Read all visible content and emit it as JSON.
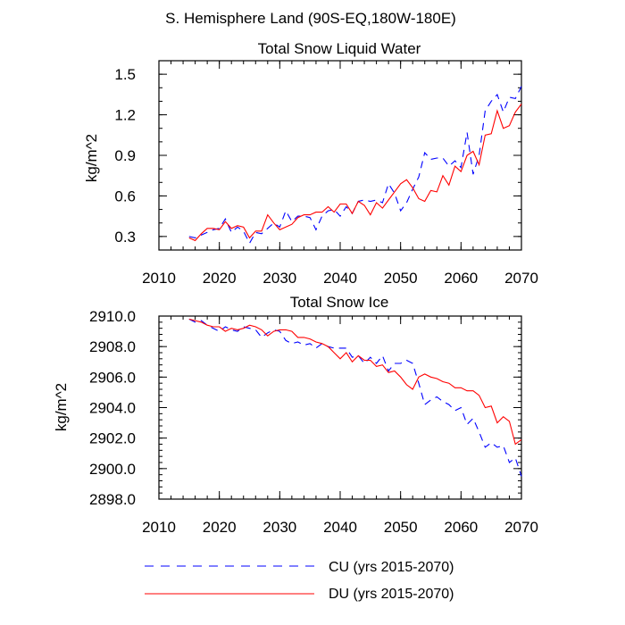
{
  "figure_title": "S. Hemisphere Land (90S-EQ,180W-180E)",
  "legend": [
    {
      "label": "CU (yrs 2015-2070)",
      "color": "#0000ff",
      "dash": "dashed"
    },
    {
      "label": "DU (yrs 2015-2070)",
      "color": "#ff0000",
      "dash": "solid"
    }
  ],
  "chart_data": [
    {
      "type": "line",
      "title": "Total Snow Liquid Water",
      "xlabel": "",
      "ylabel": "kg/m^2",
      "xlim": [
        2010,
        2070
      ],
      "ylim": [
        0.2,
        1.6
      ],
      "x_ticks": [
        2010,
        2020,
        2030,
        2040,
        2050,
        2060,
        2070
      ],
      "x_tick_labels": [
        "2010",
        "2020",
        "2030",
        "2040",
        "2050",
        "2060",
        "2070"
      ],
      "y_ticks": [
        0.3,
        0.6,
        0.9,
        1.2,
        1.5
      ],
      "y_tick_labels": [
        "0.3",
        "0.6",
        "0.9",
        "1.2",
        "1.5"
      ],
      "x": [
        2015,
        2016,
        2017,
        2018,
        2019,
        2020,
        2021,
        2022,
        2023,
        2024,
        2025,
        2026,
        2027,
        2028,
        2029,
        2030,
        2031,
        2032,
        2033,
        2034,
        2035,
        2036,
        2037,
        2038,
        2039,
        2040,
        2041,
        2042,
        2043,
        2044,
        2045,
        2046,
        2047,
        2048,
        2049,
        2050,
        2051,
        2052,
        2053,
        2054,
        2055,
        2056,
        2057,
        2058,
        2059,
        2060,
        2061,
        2062,
        2063,
        2064,
        2065,
        2066,
        2067,
        2068,
        2069,
        2070
      ],
      "series": [
        {
          "name": "CU (yrs 2015-2070)",
          "color": "#0000ff",
          "dash": "dashed",
          "values": [
            0.3,
            0.29,
            0.31,
            0.33,
            0.35,
            0.36,
            0.43,
            0.33,
            0.37,
            0.34,
            0.25,
            0.33,
            0.32,
            0.36,
            0.4,
            0.37,
            0.49,
            0.41,
            0.45,
            0.45,
            0.44,
            0.35,
            0.45,
            0.49,
            0.5,
            0.45,
            0.52,
            0.47,
            0.56,
            0.57,
            0.56,
            0.57,
            0.55,
            0.69,
            0.62,
            0.49,
            0.55,
            0.65,
            0.74,
            0.92,
            0.87,
            0.88,
            0.88,
            0.82,
            0.86,
            0.81,
            1.07,
            0.76,
            0.9,
            1.23,
            1.3,
            1.35,
            1.22,
            1.33,
            1.32,
            1.41
          ]
        },
        {
          "name": "DU (yrs 2015-2070)",
          "color": "#ff0000",
          "dash": "solid",
          "values": [
            0.29,
            0.27,
            0.32,
            0.36,
            0.36,
            0.35,
            0.41,
            0.36,
            0.38,
            0.37,
            0.29,
            0.34,
            0.34,
            0.46,
            0.4,
            0.35,
            0.37,
            0.39,
            0.44,
            0.46,
            0.46,
            0.48,
            0.48,
            0.52,
            0.48,
            0.54,
            0.54,
            0.47,
            0.56,
            0.53,
            0.46,
            0.55,
            0.51,
            0.57,
            0.63,
            0.69,
            0.72,
            0.66,
            0.58,
            0.56,
            0.64,
            0.63,
            0.75,
            0.68,
            0.82,
            0.78,
            0.9,
            0.93,
            0.83,
            1.05,
            1.06,
            1.23,
            1.1,
            1.12,
            1.22,
            1.28
          ]
        }
      ]
    },
    {
      "type": "line",
      "title": "Total Snow Ice",
      "xlabel": "",
      "ylabel": "kg/m^2",
      "xlim": [
        2010,
        2070
      ],
      "ylim": [
        2898.0,
        2910.0
      ],
      "x_ticks": [
        2010,
        2020,
        2030,
        2040,
        2050,
        2060,
        2070
      ],
      "x_tick_labels": [
        "2010",
        "2020",
        "2030",
        "2040",
        "2050",
        "2060",
        "2070"
      ],
      "y_ticks": [
        2898.0,
        2900.0,
        2902.0,
        2904.0,
        2906.0,
        2908.0,
        2910.0
      ],
      "y_tick_labels": [
        "2898.0",
        "2900.0",
        "2902.0",
        "2904.0",
        "2906.0",
        "2908.0",
        "2910.0"
      ],
      "x": [
        2015,
        2016,
        2017,
        2018,
        2019,
        2020,
        2021,
        2022,
        2023,
        2024,
        2025,
        2026,
        2027,
        2028,
        2029,
        2030,
        2031,
        2032,
        2033,
        2034,
        2035,
        2036,
        2037,
        2038,
        2039,
        2040,
        2041,
        2042,
        2043,
        2044,
        2045,
        2046,
        2047,
        2048,
        2049,
        2050,
        2051,
        2052,
        2053,
        2054,
        2055,
        2056,
        2057,
        2058,
        2059,
        2060,
        2061,
        2062,
        2063,
        2064,
        2065,
        2066,
        2067,
        2068,
        2069,
        2070
      ],
      "series": [
        {
          "name": "CU (yrs 2015-2070)",
          "color": "#0000ff",
          "dash": "dashed",
          "values": [
            2909.8,
            2909.6,
            2909.7,
            2909.4,
            2909.2,
            2909.0,
            2909.3,
            2909.1,
            2909.0,
            2909.3,
            2909.2,
            2909.1,
            2908.6,
            2908.9,
            2909.1,
            2909.0,
            2908.4,
            2908.2,
            2908.3,
            2908.1,
            2908.2,
            2907.9,
            2908.2,
            2908.0,
            2907.9,
            2907.9,
            2907.9,
            2907.3,
            2907.4,
            2906.9,
            2907.3,
            2906.9,
            2907.4,
            2906.4,
            2906.9,
            2906.9,
            2907.1,
            2906.9,
            2905.6,
            2904.2,
            2904.5,
            2904.7,
            2904.4,
            2904.2,
            2903.8,
            2904.0,
            2902.9,
            2903.3,
            2902.4,
            2901.4,
            2901.7,
            2901.4,
            2901.5,
            2900.4,
            2900.7,
            2899.5
          ]
        },
        {
          "name": "DU (yrs 2015-2070)",
          "color": "#ff0000",
          "dash": "solid",
          "values": [
            2909.8,
            2909.7,
            2909.6,
            2909.4,
            2909.3,
            2909.3,
            2909.0,
            2909.2,
            2909.1,
            2909.2,
            2909.4,
            2909.3,
            2909.1,
            2908.7,
            2909.0,
            2909.1,
            2909.1,
            2909.0,
            2908.6,
            2908.6,
            2908.5,
            2908.3,
            2908.2,
            2908.0,
            2907.6,
            2907.2,
            2907.6,
            2907.0,
            2907.4,
            2907.1,
            2907.1,
            2906.7,
            2906.8,
            2906.3,
            2906.4,
            2906.0,
            2905.5,
            2905.2,
            2906.0,
            2906.2,
            2906.0,
            2905.9,
            2905.7,
            2905.6,
            2905.3,
            2905.3,
            2905.1,
            2905.1,
            2904.8,
            2904.0,
            2904.1,
            2903.0,
            2903.4,
            2903.1,
            2901.6,
            2901.9
          ]
        }
      ]
    }
  ]
}
